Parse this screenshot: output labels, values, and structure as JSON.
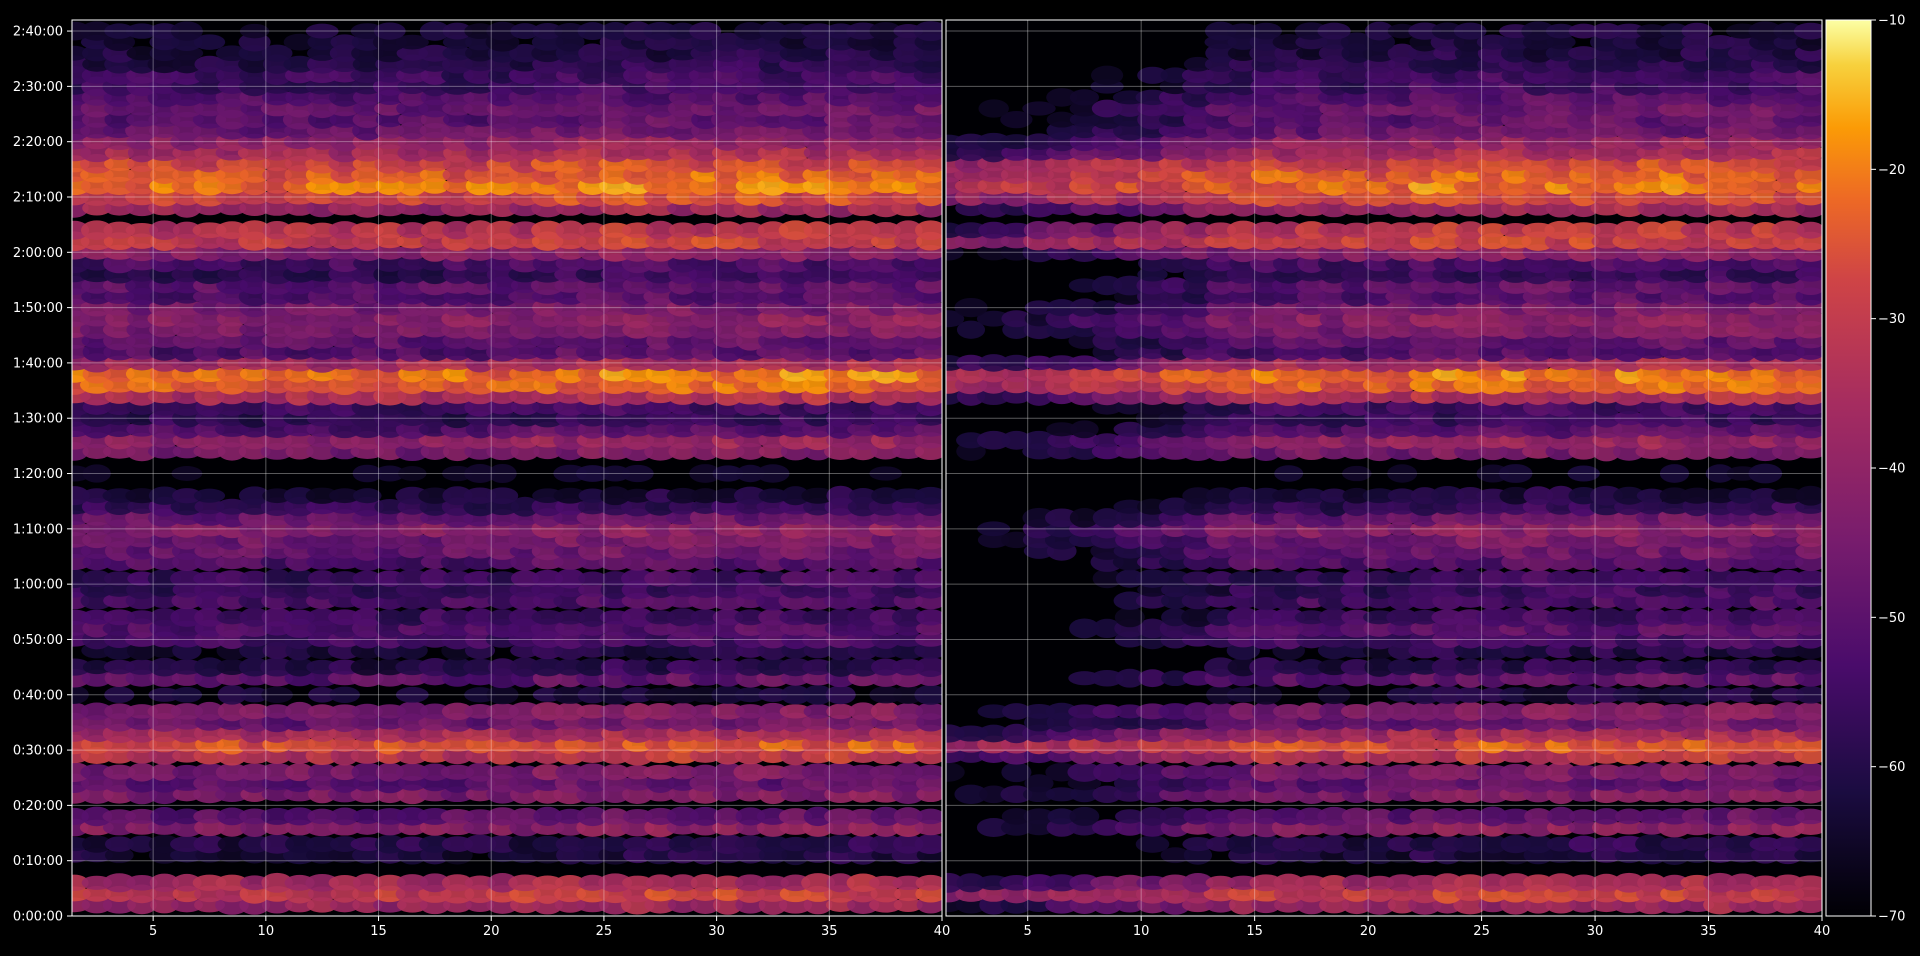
{
  "chart_data": {
    "type": "heatmap",
    "panels": [
      {
        "name": "",
        "x_range": [
          1.4,
          40
        ],
        "x_ticks": [
          "5",
          "10",
          "15",
          "20",
          "25",
          "30",
          "35",
          "40"
        ]
      },
      {
        "name": "",
        "x_range": [
          1.4,
          40
        ],
        "x_ticks": [
          "5",
          "10",
          "15",
          "20",
          "25",
          "30",
          "35",
          "40"
        ]
      }
    ],
    "x_tick_values": [
      5,
      10,
      15,
      20,
      25,
      30,
      35,
      40
    ],
    "y_range_seconds": [
      0,
      9720
    ],
    "y_ticks": [
      "0:00:00",
      "0:10:00",
      "0:20:00",
      "0:30:00",
      "0:40:00",
      "0:50:00",
      "1:00:00",
      "1:10:00",
      "1:20:00",
      "1:30:00",
      "1:40:00",
      "1:50:00",
      "2:00:00",
      "2:10:00",
      "2:20:00",
      "2:30:00",
      "2:40:00"
    ],
    "colorbar": {
      "min": -70,
      "max": -10,
      "ticks": [
        "−10",
        "−20",
        "−30",
        "−40",
        "−50",
        "−60",
        "−70"
      ],
      "tick_values": [
        -10,
        -20,
        -30,
        -40,
        -50,
        -60,
        -70
      ],
      "colormap": "inferno"
    },
    "grid": true,
    "rows": [
      {
        "t": 120,
        "v": -38
      },
      {
        "t": 240,
        "v": -30
      },
      {
        "t": 360,
        "v": -36
      },
      {
        "t": 660,
        "v": -62
      },
      {
        "t": 780,
        "v": -60
      },
      {
        "t": 960,
        "v": -42
      },
      {
        "t": 1080,
        "v": -50
      },
      {
        "t": 1320,
        "v": -44
      },
      {
        "t": 1440,
        "v": -50
      },
      {
        "t": 1560,
        "v": -45
      },
      {
        "t": 1740,
        "v": -32
      },
      {
        "t": 1860,
        "v": -26
      },
      {
        "t": 1980,
        "v": -36
      },
      {
        "t": 2100,
        "v": -48
      },
      {
        "t": 2220,
        "v": -44
      },
      {
        "t": 2400,
        "v": -64
      },
      {
        "t": 2580,
        "v": -50
      },
      {
        "t": 2700,
        "v": -60
      },
      {
        "t": 2880,
        "v": -62
      },
      {
        "t": 3000,
        "v": -55
      },
      {
        "t": 3120,
        "v": -52
      },
      {
        "t": 3240,
        "v": -56
      },
      {
        "t": 3420,
        "v": -54
      },
      {
        "t": 3540,
        "v": -57
      },
      {
        "t": 3660,
        "v": -56
      },
      {
        "t": 3840,
        "v": -52
      },
      {
        "t": 3960,
        "v": -48
      },
      {
        "t": 4080,
        "v": -46
      },
      {
        "t": 4200,
        "v": -42
      },
      {
        "t": 4320,
        "v": -48
      },
      {
        "t": 4440,
        "v": -58
      },
      {
        "t": 4560,
        "v": -63
      },
      {
        "t": 4800,
        "v": -68
      },
      {
        "t": 5040,
        "v": -45
      },
      {
        "t": 5160,
        "v": -40
      },
      {
        "t": 5280,
        "v": -52
      },
      {
        "t": 5400,
        "v": -58
      },
      {
        "t": 5520,
        "v": -56
      },
      {
        "t": 5640,
        "v": -34
      },
      {
        "t": 5760,
        "v": -24
      },
      {
        "t": 5880,
        "v": -22
      },
      {
        "t": 6000,
        "v": -36
      },
      {
        "t": 6120,
        "v": -52
      },
      {
        "t": 6240,
        "v": -50
      },
      {
        "t": 6360,
        "v": -44
      },
      {
        "t": 6480,
        "v": -42
      },
      {
        "t": 6600,
        "v": -46
      },
      {
        "t": 6720,
        "v": -52
      },
      {
        "t": 6840,
        "v": -50
      },
      {
        "t": 6960,
        "v": -58
      },
      {
        "t": 7080,
        "v": -54
      },
      {
        "t": 7200,
        "v": -42
      },
      {
        "t": 7320,
        "v": -30
      },
      {
        "t": 7440,
        "v": -32
      },
      {
        "t": 7680,
        "v": -38
      },
      {
        "t": 7800,
        "v": -28
      },
      {
        "t": 7920,
        "v": -22
      },
      {
        "t": 8040,
        "v": -24
      },
      {
        "t": 8160,
        "v": -28
      },
      {
        "t": 8280,
        "v": -36
      },
      {
        "t": 8400,
        "v": -40
      },
      {
        "t": 8520,
        "v": -48
      },
      {
        "t": 8640,
        "v": -50
      },
      {
        "t": 8760,
        "v": -48
      },
      {
        "t": 8880,
        "v": -52
      },
      {
        "t": 9000,
        "v": -56
      },
      {
        "t": 9120,
        "v": -56
      },
      {
        "t": 9240,
        "v": -60
      },
      {
        "t": 9360,
        "v": -62
      },
      {
        "t": 9480,
        "v": -64
      },
      {
        "t": 9600,
        "v": -64
      }
    ],
    "right_panel_fade_until_x": 15
  }
}
